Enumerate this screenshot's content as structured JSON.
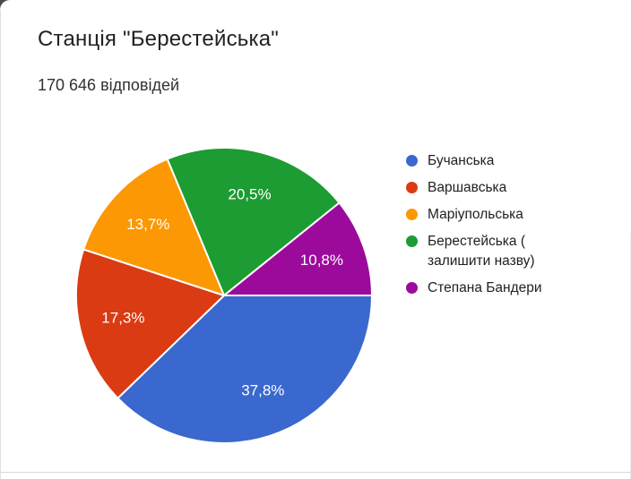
{
  "chart_data": {
    "type": "pie",
    "title": "Станція \"Берестейська\"",
    "subtitle": "170 646 відповідей",
    "legend_position": "right",
    "start_angle_deg": 0,
    "direction": "clockwise",
    "label_unit": "%",
    "segments": [
      {
        "label": "Бучанська",
        "legend_lines": [
          "Бучанська"
        ],
        "value_pct": 37.8,
        "display": "37,8%",
        "color": "#3A68CE"
      },
      {
        "label": "Варшавська",
        "legend_lines": [
          "Варшавська"
        ],
        "value_pct": 17.3,
        "display": "17,3%",
        "color": "#DA3B13"
      },
      {
        "label": "Маріупольська",
        "legend_lines": [
          "Маріупольська"
        ],
        "value_pct": 13.7,
        "display": "13,7%",
        "color": "#FC9803"
      },
      {
        "label": "Берестейська ( залишити назву)",
        "legend_lines": [
          "Берестейська (",
          "залишити назву)"
        ],
        "value_pct": 20.5,
        "display": "20,5%",
        "color": "#1C9C32"
      },
      {
        "label": "Степана Бандери",
        "legend_lines": [
          "Степана Бандери"
        ],
        "value_pct": 10.8,
        "display": "10,8%",
        "color": "#9C0A9C"
      }
    ]
  }
}
